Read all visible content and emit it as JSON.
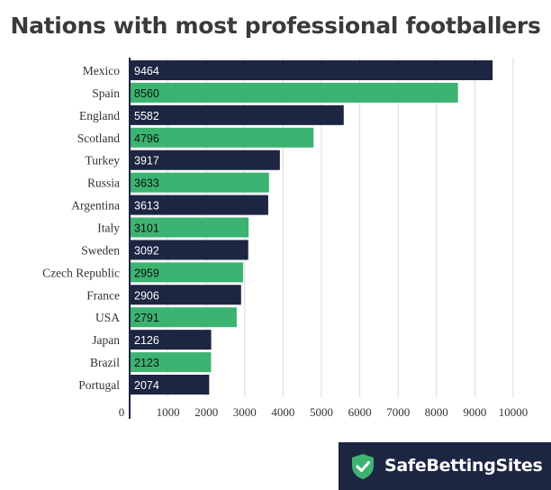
{
  "chart_data": {
    "type": "bar",
    "orientation": "horizontal",
    "title": "Nations with most professional footballers",
    "categories": [
      "Mexico",
      "Spain",
      "England",
      "Scotland",
      "Turkey",
      "Russia",
      "Argentina",
      "Italy",
      "Sweden",
      "Czech Republic",
      "France",
      "USA",
      "Japan",
      "Brazil",
      "Portugal"
    ],
    "values": [
      9464,
      8560,
      5582,
      4796,
      3917,
      3633,
      3613,
      3101,
      3092,
      2959,
      2906,
      2791,
      2126,
      2123,
      2074
    ],
    "xlim": [
      0,
      10000
    ],
    "xticks": [
      0,
      1000,
      2000,
      3000,
      4000,
      5000,
      6000,
      7000,
      8000,
      9000,
      10000
    ],
    "grid": true,
    "legend": "none",
    "colors": {
      "dark": "#1c2541",
      "green": "#3cb371",
      "grid": "#d9d9d9",
      "axis": "#1c2541"
    }
  },
  "brand": {
    "name": "SafeBettingSites",
    "icon": "shield-check-icon",
    "background": "#1c2541",
    "shield_color": "#3cb371"
  }
}
